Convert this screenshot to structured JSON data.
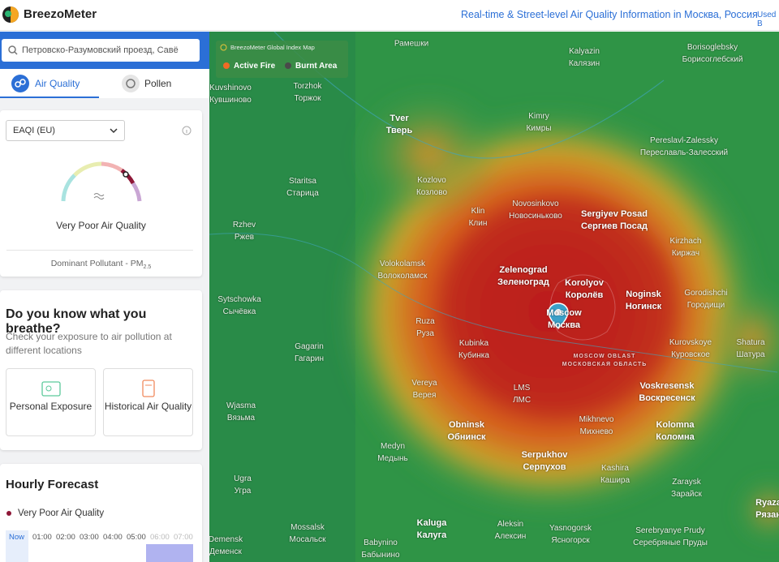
{
  "header": {
    "brand": "BreezoMeter",
    "tagline": "Real-time & Street-level Air Quality Information in Москва, Россия",
    "used_by": "Used B"
  },
  "sidebar": {
    "search": "Петровско-Разумовский проезд, Савё",
    "tabs": [
      "Air Quality",
      "Pollen"
    ],
    "index_select": "EAQI (EU)",
    "aq_status": "Very Poor Air Quality",
    "dominant_pollutant": "Dominant Pollutant - PM",
    "pollutant_sub": "2.5",
    "exposure_card": {
      "title": "Do you know what you breathe?",
      "text": "Check your exposure to air pollution at different locations",
      "buttons": [
        "Personal Exposure",
        "Historical Air Quality"
      ]
    },
    "forecast": {
      "title": "Hourly Forecast",
      "status": "Very Poor Air Quality",
      "hours": [
        "Now",
        "01:00",
        "02:00",
        "03:00",
        "04:00",
        "05:00",
        "06:00",
        "07:00"
      ]
    }
  },
  "map": {
    "legend_title": "BreezoMeter Global Index Map",
    "legend_items": [
      "Active Fire",
      "Burnt Area"
    ],
    "cities": [
      [
        "Рамешки",
        null
      ],
      [
        "Kalyazin",
        "Калязин"
      ],
      [
        "Borisoglebsky",
        "Борисоглебский"
      ],
      [
        "Kuvshinovo",
        "Кувшиново"
      ],
      [
        "Torzhok",
        "Торжок"
      ],
      [
        "Tver",
        "Тверь"
      ],
      [
        "Kimry",
        "Кимры"
      ],
      [
        "Pereslavl-Zalessky",
        "Переславль-Залесский"
      ],
      [
        "Staritsa",
        "Старица"
      ],
      [
        "Kozlovo",
        "Козлово"
      ],
      [
        "Klin",
        "Клин"
      ],
      [
        "Novosinkovo",
        "Новосиньково"
      ],
      [
        "Sergiyev Posad",
        "Сергиев Посад"
      ],
      [
        "Rzhev",
        "Ржев"
      ],
      [
        "Kirzhach",
        "Киржач"
      ],
      [
        "Volokolamsk",
        "Волоколамск"
      ],
      [
        "Zelenograd",
        "Зеленоград"
      ],
      [
        "Korolyov",
        "Королёв"
      ],
      [
        "Noginsk",
        "Ногинск"
      ],
      [
        "Gorodishchi",
        "Городищи"
      ],
      [
        "Sytschowka",
        "Сычёвка"
      ],
      [
        "Moscow",
        "Москва"
      ],
      [
        "Ruza",
        "Руза"
      ],
      [
        "Gagarin",
        "Гагарин"
      ],
      [
        "Kubinka",
        "Кубинка"
      ],
      [
        "Kurovskoye",
        "Куровское"
      ],
      [
        "Shatura",
        "Шатура"
      ],
      [
        "MOSCOW OBLAST",
        "МОСКОВСКАЯ ОБЛАСТЬ"
      ],
      [
        "Vereya",
        "Верея"
      ],
      [
        "LMS",
        "ЛМС"
      ],
      [
        "Voskresensk",
        "Воскресенск"
      ],
      [
        "Wjasma",
        "Вязьма"
      ],
      [
        "Obninsk",
        "Обнинск"
      ],
      [
        "Mikhnevo",
        "Михнево"
      ],
      [
        "Kolomna",
        "Коломна"
      ],
      [
        "Medyn",
        "Медынь"
      ],
      [
        "Serpukhov",
        "Серпухов"
      ],
      [
        "Kashira",
        "Кашира"
      ],
      [
        "Ugra",
        "Угра"
      ],
      [
        "Zaraysk",
        "Зарайск"
      ],
      [
        "Ryaza",
        "Рязан"
      ],
      [
        "Kaluga",
        "Калуга"
      ],
      [
        "Mossalsk",
        "Мосальск"
      ],
      [
        "Aleksin",
        "Алексин"
      ],
      [
        "Yasnogorsk",
        "Ясногорск"
      ],
      [
        "Serebryanye Prudy",
        "Серебряные Пруды"
      ],
      [
        "Demensk",
        "Деменск"
      ],
      [
        "Babynino",
        "Бабынино"
      ]
    ]
  }
}
